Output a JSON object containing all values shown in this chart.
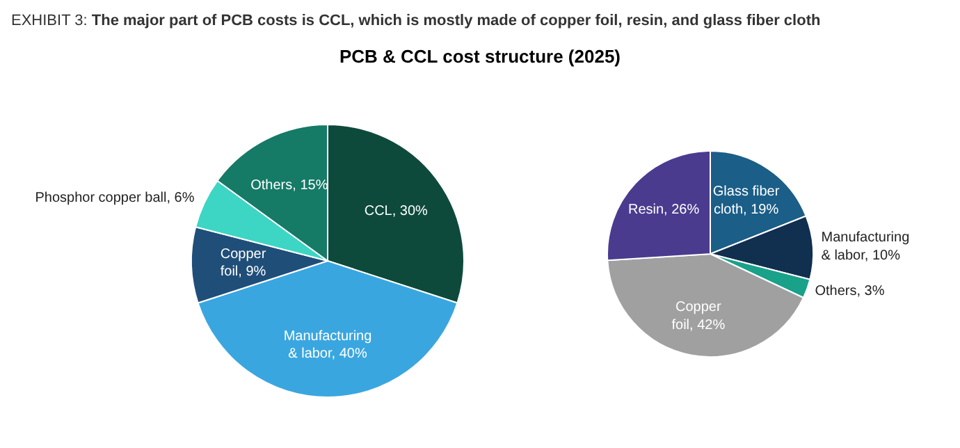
{
  "chart_data": [
    {
      "type": "pie",
      "title": "EXHIBIT 3: The major part of PCB costs is CCL, which is mostly made of copper foil, resin, and glass fiber cloth",
      "subtitle": "PCB & CCL cost structure (2025)",
      "categories": [
        "CCL",
        "Manufacturing & labor",
        "Copper foil",
        "Phosphor copper ball",
        "Others"
      ],
      "values": [
        30,
        40,
        9,
        6,
        15
      ],
      "colors": [
        "#0e4a3c",
        "#3aa6e0",
        "#1f4e79",
        "#3dd6c4",
        "#157a66"
      ],
      "value_labels": [
        "30%",
        "40%",
        "9%",
        "6%",
        "15%"
      ]
    },
    {
      "type": "pie",
      "categories": [
        "Glass fiber cloth",
        "Manufacturing & labor",
        "Others",
        "Copper foil",
        "Resin"
      ],
      "values": [
        19,
        10,
        3,
        42,
        26
      ],
      "colors": [
        "#1b5e88",
        "#112f4f",
        "#1aa18a",
        "#a0a0a0",
        "#4a3b8f"
      ],
      "value_labels": [
        "19%",
        "10%",
        "3%",
        "42%",
        "26%"
      ]
    }
  ]
}
